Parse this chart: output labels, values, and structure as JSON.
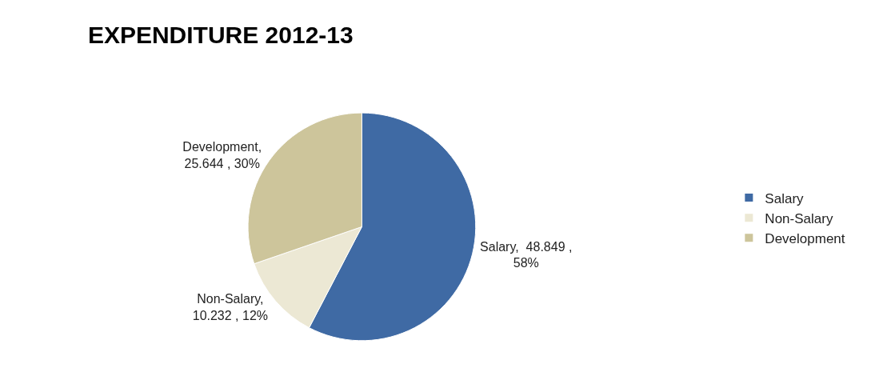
{
  "chart_data": {
    "type": "pie",
    "title": "EXPENDITURE 2012-13",
    "categories": [
      "Salary",
      "Non-Salary",
      "Development"
    ],
    "values": [
      48.849,
      10.232,
      25.644
    ],
    "colors": [
      "#3f6aa4",
      "#ece8d4",
      "#cdc59b"
    ],
    "value_labels": [
      "Salary,  48.849 ,\n58%",
      "Non-Salary,\n10.232 , 12%",
      "Development,\n25.644 , 30%"
    ],
    "legend": "right"
  }
}
